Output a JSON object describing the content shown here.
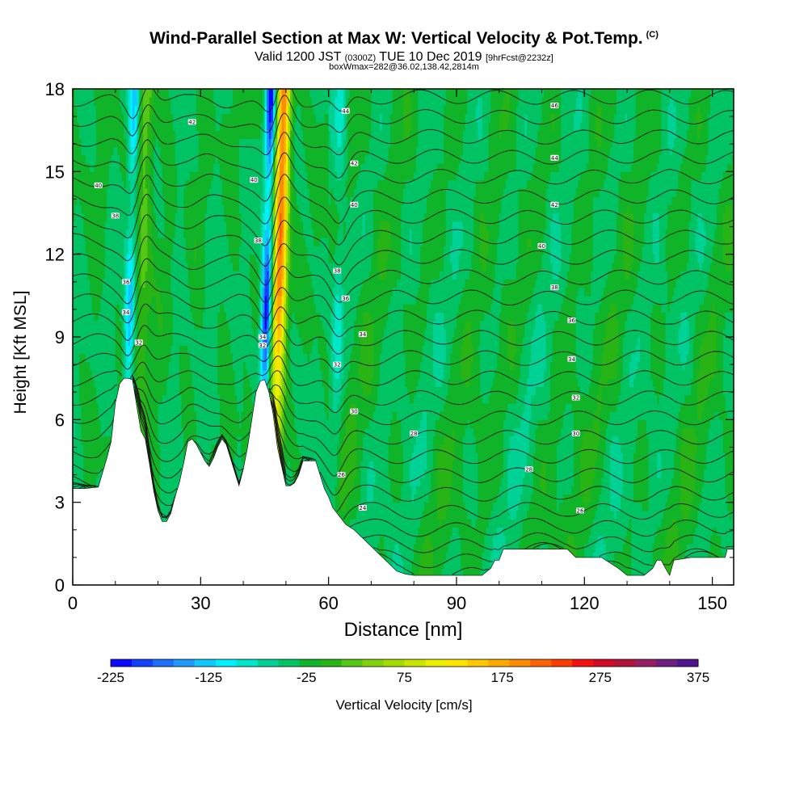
{
  "header": {
    "title": "Wind-Parallel Section at Max W: Vertical Velocity & Pot.Temp.",
    "title_mark": "(C)",
    "subtitle_main": "Valid 1200 JST",
    "subtitle_utc": "(0300Z)",
    "subtitle_date": "TUE 10 Dec 2019",
    "subtitle_fcst": "[9hrFcst@2232z]",
    "subtitle_box": "boxWmax=282@36.02,138.42,2814m"
  },
  "chart_data": {
    "type": "heatmap",
    "xlabel": "Distance [nm]",
    "ylabel": "Height [Kft MSL]",
    "xlim": [
      0,
      155
    ],
    "ylim": [
      0,
      18
    ],
    "xticks": [
      0,
      30,
      60,
      90,
      120,
      150
    ],
    "yticks": [
      0,
      3,
      6,
      9,
      12,
      15,
      18
    ],
    "colorbar": {
      "label": "Vertical Velocity [cm/s]",
      "tick_labels": [
        -225,
        -125,
        -25,
        75,
        175,
        275,
        375
      ],
      "min": -225,
      "max": 375,
      "step": 25,
      "colors": [
        "#0a0aff",
        "#1440ff",
        "#1e6eff",
        "#1e9bff",
        "#0fc8ff",
        "#00f0ff",
        "#00e6c8",
        "#00d296",
        "#00c364",
        "#10b428",
        "#28b414",
        "#55c814",
        "#82d20a",
        "#a5dc00",
        "#c8e600",
        "#ebf000",
        "#ffe600",
        "#ffc800",
        "#ffaa00",
        "#ff8c00",
        "#ff6400",
        "#ff3c00",
        "#f50f0f",
        "#d20a28",
        "#b4143c",
        "#961e64",
        "#6e1e82",
        "#50148c"
      ]
    },
    "terrain_height_kft": [
      [
        0,
        3.5
      ],
      [
        3,
        3.5
      ],
      [
        6,
        3.55
      ],
      [
        8,
        4.6
      ],
      [
        9,
        5.2
      ],
      [
        10,
        6.6
      ],
      [
        11,
        7.3
      ],
      [
        12,
        7.5
      ],
      [
        13,
        7.5
      ],
      [
        14,
        7.45
      ],
      [
        15,
        6.5
      ],
      [
        16,
        5.6
      ],
      [
        17,
        5.3
      ],
      [
        18,
        4.4
      ],
      [
        19,
        3.4
      ],
      [
        20,
        2.7
      ],
      [
        21,
        2.3
      ],
      [
        22,
        2.3
      ],
      [
        23,
        2.6
      ],
      [
        24,
        3.2
      ],
      [
        25,
        3.7
      ],
      [
        26,
        4.4
      ],
      [
        27,
        5.2
      ],
      [
        28,
        5.3
      ],
      [
        29,
        5.1
      ],
      [
        30,
        4.8
      ],
      [
        31,
        4.5
      ],
      [
        32,
        4.3
      ],
      [
        33,
        4.6
      ],
      [
        34,
        5.0
      ],
      [
        35,
        5.3
      ],
      [
        36,
        5.1
      ],
      [
        37,
        4.6
      ],
      [
        38,
        4.1
      ],
      [
        39,
        3.6
      ],
      [
        40,
        4.2
      ],
      [
        41,
        5.0
      ],
      [
        42,
        6.0
      ],
      [
        43,
        7.0
      ],
      [
        44,
        7.4
      ],
      [
        45,
        7.45
      ],
      [
        46,
        7.0
      ],
      [
        47,
        6.2
      ],
      [
        48,
        5.0
      ],
      [
        49,
        4.3
      ],
      [
        50,
        3.6
      ],
      [
        51,
        3.6
      ],
      [
        52,
        3.7
      ],
      [
        53,
        4.0
      ],
      [
        54,
        4.5
      ],
      [
        55,
        4.5
      ],
      [
        56,
        4.5
      ],
      [
        57,
        4.5
      ],
      [
        58,
        4.0
      ],
      [
        59,
        3.5
      ],
      [
        60,
        3.2
      ],
      [
        61,
        2.8
      ],
      [
        62,
        2.6
      ],
      [
        63,
        2.4
      ],
      [
        64,
        2.2
      ],
      [
        66,
        2.0
      ],
      [
        68,
        1.7
      ],
      [
        70,
        1.4
      ],
      [
        72,
        1.1
      ],
      [
        74,
        0.8
      ],
      [
        76,
        0.5
      ],
      [
        78,
        0.4
      ],
      [
        80,
        0.35
      ],
      [
        84,
        0.35
      ],
      [
        88,
        0.35
      ],
      [
        92,
        0.35
      ],
      [
        96,
        0.35
      ],
      [
        98,
        0.6
      ],
      [
        99,
        0.9
      ],
      [
        100,
        0.9
      ],
      [
        101,
        1.3
      ],
      [
        104,
        1.3
      ],
      [
        108,
        1.3
      ],
      [
        112,
        1.3
      ],
      [
        116,
        1.3
      ],
      [
        118,
        1.0
      ],
      [
        120,
        1.0
      ],
      [
        124,
        1.0
      ],
      [
        128,
        0.6
      ],
      [
        130,
        0.35
      ],
      [
        134,
        0.35
      ],
      [
        136,
        0.6
      ],
      [
        137,
        0.9
      ],
      [
        138,
        0.9
      ],
      [
        139,
        0.6
      ],
      [
        140,
        0.35
      ],
      [
        141,
        0.9
      ],
      [
        145,
        1.0
      ],
      [
        150,
        1.0
      ],
      [
        153,
        1.0
      ],
      [
        153.5,
        1.3
      ],
      [
        155,
        1.3
      ]
    ],
    "updraft_cores": [
      {
        "x_base": 15,
        "x_top": 17.5,
        "w_peak": 75
      },
      {
        "x_base": 47,
        "x_top": 49.5,
        "w_peak": 282
      }
    ],
    "downdraft_cores": [
      {
        "x_base": 12,
        "x_top": 14.5,
        "w_peak": -125
      },
      {
        "x_base": 44,
        "x_top": 46.5,
        "w_peak": -225
      },
      {
        "x_base": 61,
        "x_top": 63,
        "w_peak": -50
      }
    ],
    "theta_contour_labels": [
      {
        "x": 28,
        "y": 16.8,
        "text": "42"
      },
      {
        "x": 6,
        "y": 14.5,
        "text": "40"
      },
      {
        "x": 10,
        "y": 13.4,
        "text": "38"
      },
      {
        "x": 12.5,
        "y": 11.0,
        "text": "36"
      },
      {
        "x": 12.5,
        "y": 9.9,
        "text": "34"
      },
      {
        "x": 15.5,
        "y": 8.8,
        "text": "32"
      },
      {
        "x": 42.5,
        "y": 14.7,
        "text": "40"
      },
      {
        "x": 43.5,
        "y": 12.5,
        "text": "38"
      },
      {
        "x": 44.5,
        "y": 9.0,
        "text": "34"
      },
      {
        "x": 44.5,
        "y": 8.7,
        "text": "32"
      },
      {
        "x": 64,
        "y": 17.2,
        "text": "44"
      },
      {
        "x": 66,
        "y": 15.3,
        "text": "42"
      },
      {
        "x": 66,
        "y": 13.8,
        "text": "40"
      },
      {
        "x": 62,
        "y": 11.4,
        "text": "38"
      },
      {
        "x": 64,
        "y": 10.4,
        "text": "36"
      },
      {
        "x": 68,
        "y": 9.1,
        "text": "34"
      },
      {
        "x": 62,
        "y": 8.0,
        "text": "32"
      },
      {
        "x": 66,
        "y": 6.3,
        "text": "30"
      },
      {
        "x": 80,
        "y": 5.5,
        "text": "28"
      },
      {
        "x": 63,
        "y": 4.0,
        "text": "26"
      },
      {
        "x": 68,
        "y": 2.8,
        "text": "24"
      },
      {
        "x": 113,
        "y": 17.4,
        "text": "46"
      },
      {
        "x": 113,
        "y": 15.5,
        "text": "44"
      },
      {
        "x": 113,
        "y": 13.8,
        "text": "42"
      },
      {
        "x": 110,
        "y": 12.3,
        "text": "40"
      },
      {
        "x": 113,
        "y": 10.8,
        "text": "38"
      },
      {
        "x": 117,
        "y": 9.6,
        "text": "36"
      },
      {
        "x": 117,
        "y": 8.2,
        "text": "34"
      },
      {
        "x": 118,
        "y": 6.8,
        "text": "32"
      },
      {
        "x": 118,
        "y": 5.5,
        "text": "30"
      },
      {
        "x": 107,
        "y": 4.2,
        "text": "28"
      },
      {
        "x": 119,
        "y": 2.7,
        "text": "26"
      }
    ]
  }
}
